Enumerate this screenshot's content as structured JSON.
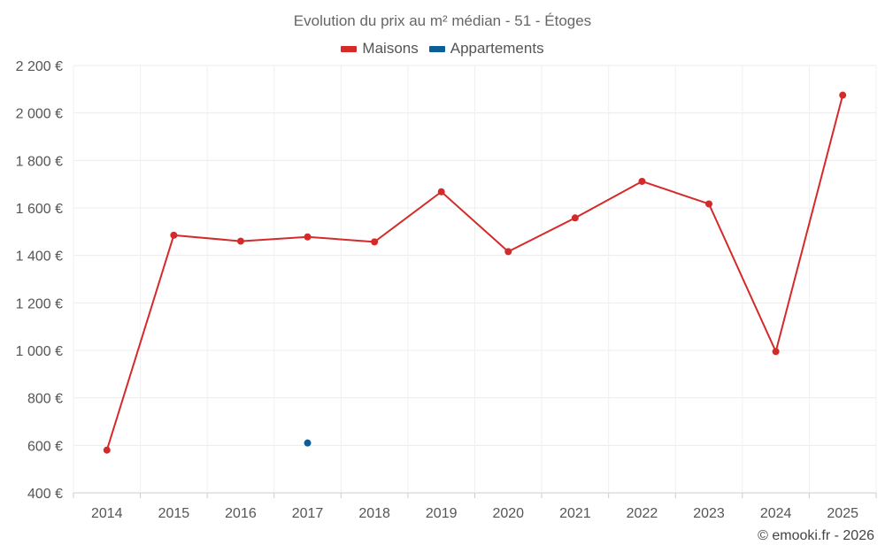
{
  "chart_data": {
    "type": "line",
    "title": "Evolution du prix au m² médian - 51 - Étoges",
    "categories": [
      "2014",
      "2015",
      "2016",
      "2017",
      "2018",
      "2019",
      "2020",
      "2021",
      "2022",
      "2023",
      "2024",
      "2025"
    ],
    "series": [
      {
        "name": "Maisons",
        "color": "#d42a2a",
        "values": [
          580,
          1485,
          1460,
          1478,
          1457,
          1668,
          1416,
          1558,
          1712,
          1617,
          995,
          2075
        ]
      },
      {
        "name": "Appartements",
        "color": "#0b5e96",
        "values": [
          null,
          null,
          null,
          610,
          null,
          null,
          null,
          null,
          null,
          null,
          null,
          null
        ]
      }
    ],
    "ylim": [
      400,
      2200
    ],
    "yticks": [
      400,
      600,
      800,
      1000,
      1200,
      1400,
      1600,
      1800,
      2000,
      2200
    ],
    "ytick_labels": [
      "400 €",
      "600 €",
      "800 €",
      "1 000 €",
      "1 200 €",
      "1 400 €",
      "1 600 €",
      "1 800 €",
      "2 000 €",
      "2 200 €"
    ],
    "grid": true,
    "legend": "top-center"
  },
  "credit": "© emooki.fr - 2026"
}
